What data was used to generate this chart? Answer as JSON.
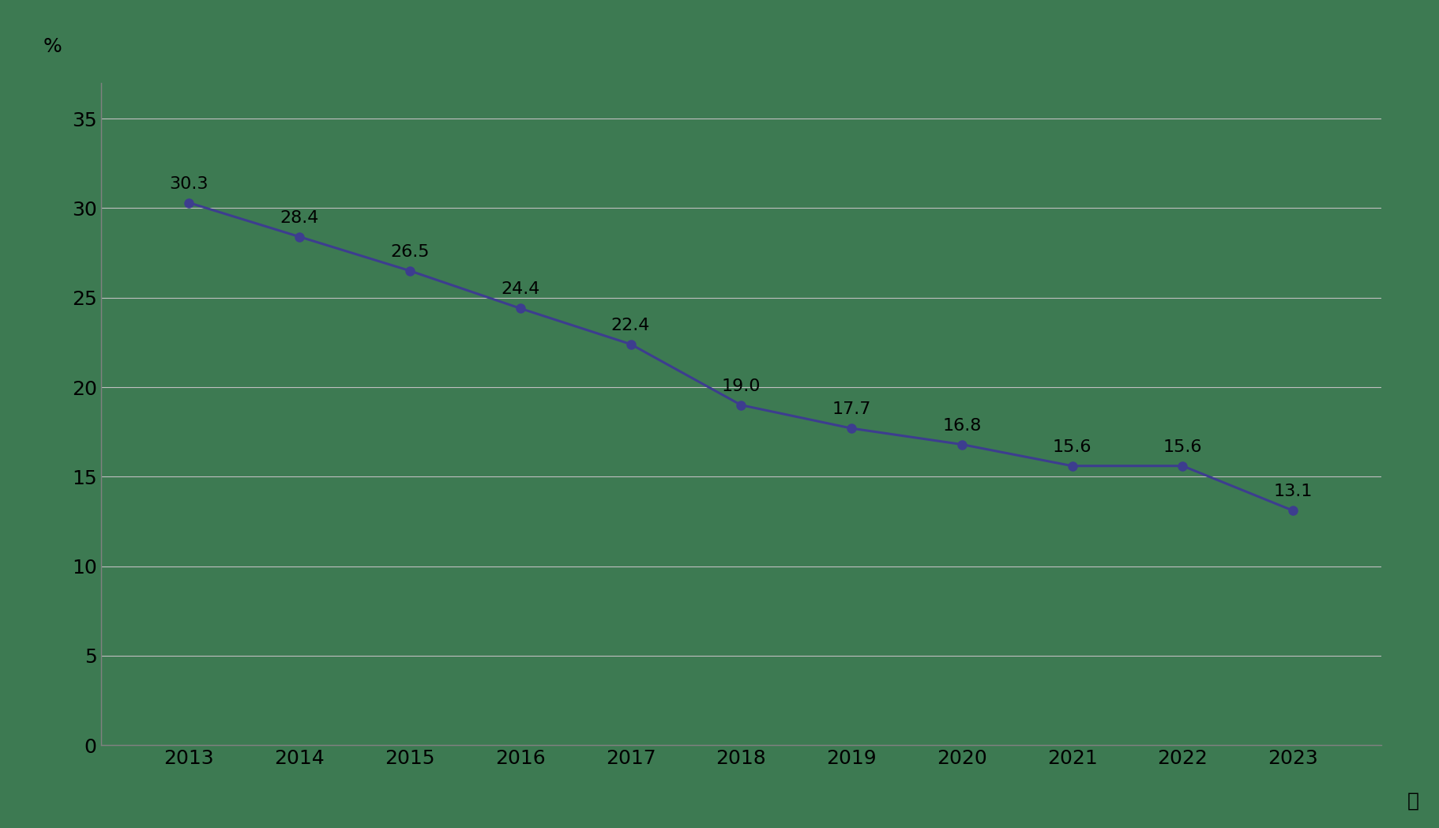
{
  "years": [
    2013,
    2014,
    2015,
    2016,
    2017,
    2018,
    2019,
    2020,
    2021,
    2022,
    2023
  ],
  "values": [
    30.3,
    28.4,
    26.5,
    24.4,
    22.4,
    19.0,
    17.7,
    16.8,
    15.6,
    15.6,
    13.1
  ],
  "ylabel": "%",
  "xlabel": "年",
  "ylim": [
    0,
    37
  ],
  "yticks": [
    0,
    5,
    10,
    15,
    20,
    25,
    30,
    35
  ],
  "background_color": "#3d7a52",
  "line_color": "#3d3d8f",
  "marker_color": "#3d3d8f",
  "text_color": "#000000",
  "grid_color": "#c0c0c0",
  "spine_color": "#808080",
  "tick_label_color": "#000000",
  "label_fontsize": 18,
  "tick_fontsize": 18,
  "annotation_fontsize": 16,
  "line_width": 2.2,
  "marker_size": 8
}
